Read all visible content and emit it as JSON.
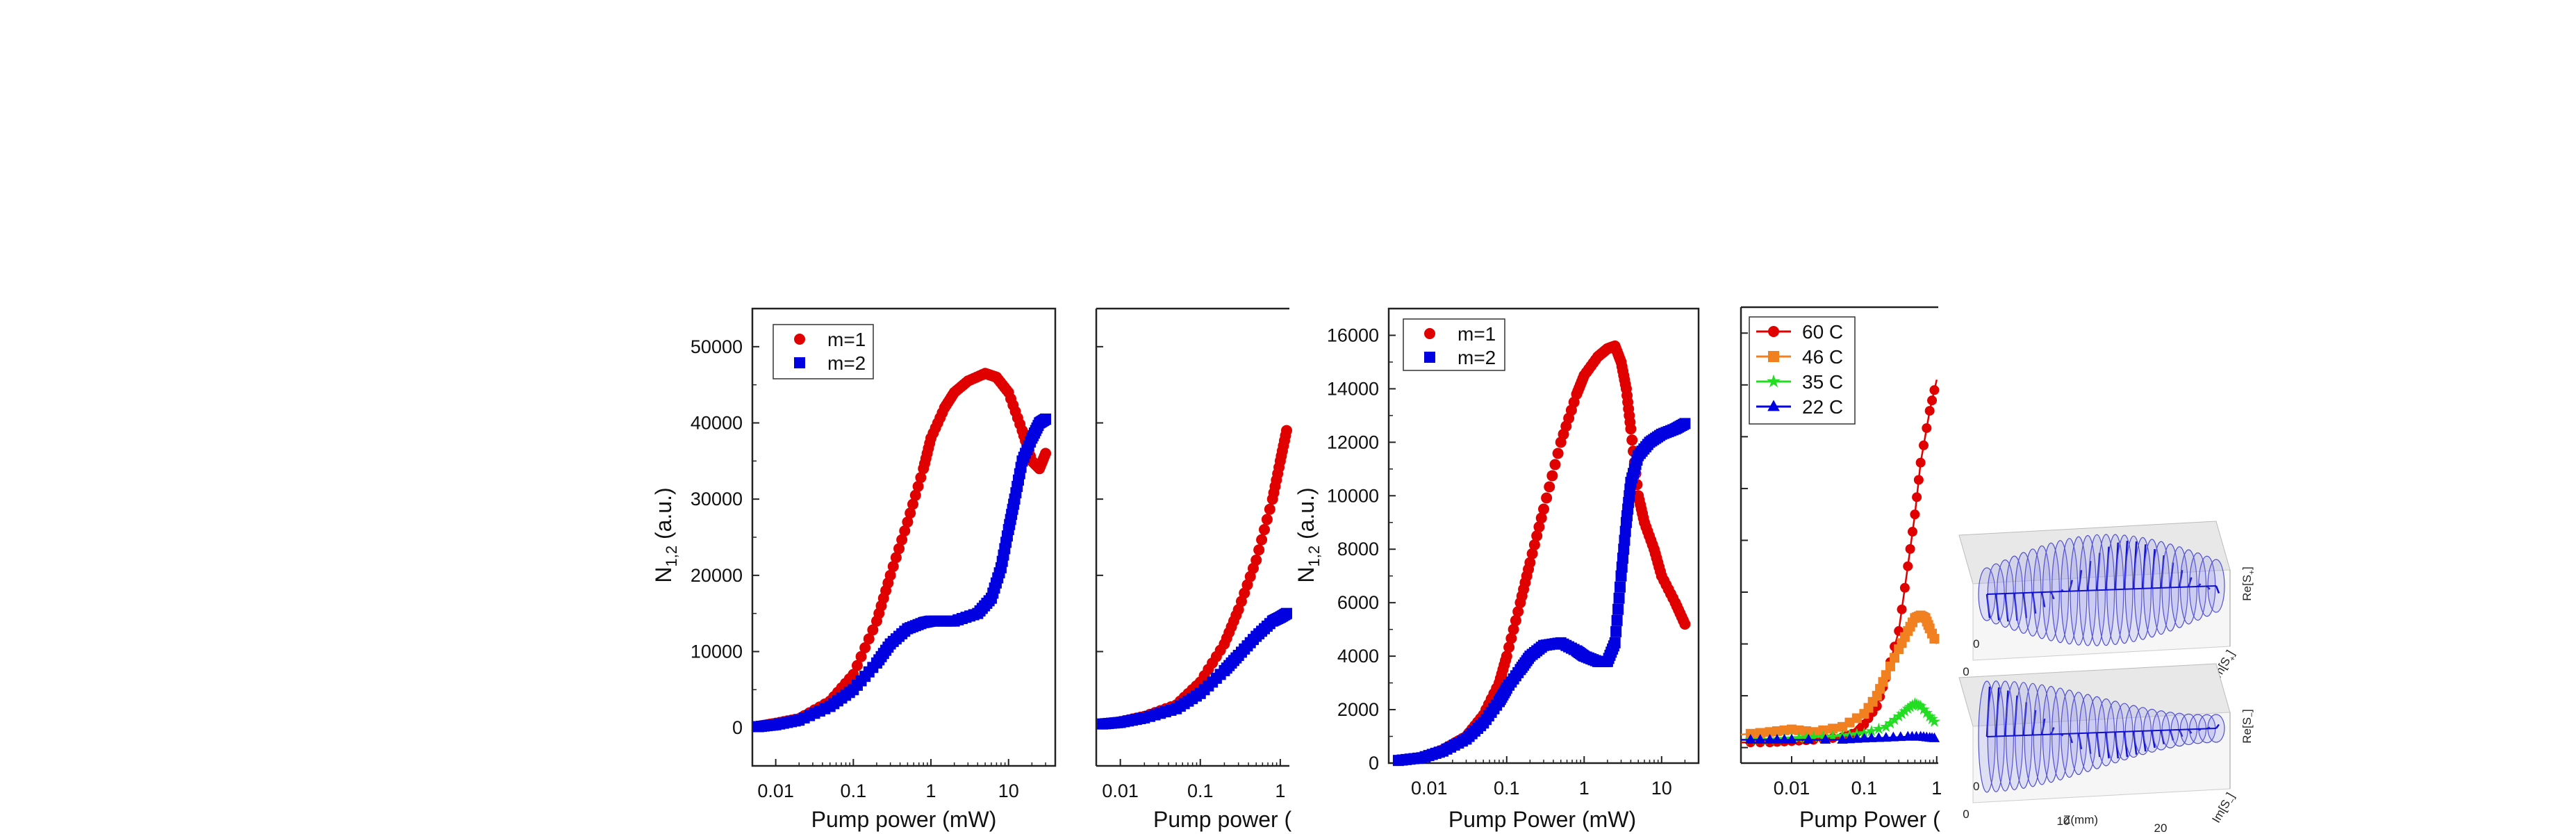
{
  "chart_data": [
    {
      "type": "scatter",
      "xscale": "log",
      "xlim": [
        0.005,
        40
      ],
      "ylim": [
        -5000,
        55000
      ],
      "xticks": [
        "0.01",
        "0.1",
        "1",
        "10"
      ],
      "yticks": [
        "0",
        "10000",
        "20000",
        "30000",
        "40000",
        "50000"
      ],
      "xlabel": "Pump power (mW)",
      "ylabel": "N",
      "ylabel_sub": "1,2",
      "ylabel_unit": " (a.u.)",
      "legend": "top-left",
      "series": [
        {
          "name": "m=1",
          "marker": "circle",
          "color": "#e00000",
          "points": [
            [
              0.006,
              200
            ],
            [
              0.01,
              600
            ],
            [
              0.02,
              1200
            ],
            [
              0.05,
              3500
            ],
            [
              0.1,
              7000
            ],
            [
              0.2,
              14000
            ],
            [
              0.3,
              20000
            ],
            [
              0.5,
              27000
            ],
            [
              0.8,
              34000
            ],
            [
              1,
              38000
            ],
            [
              1.5,
              42000
            ],
            [
              2,
              44000
            ],
            [
              3,
              45500
            ],
            [
              5,
              46500
            ],
            [
              7,
              46000
            ],
            [
              10,
              44000
            ],
            [
              15,
              39000
            ],
            [
              20,
              35000
            ],
            [
              25,
              34000
            ],
            [
              30,
              36000
            ]
          ]
        },
        {
          "name": "m=2",
          "marker": "square",
          "color": "#0000e0",
          "points": [
            [
              0.006,
              150
            ],
            [
              0.01,
              400
            ],
            [
              0.02,
              1000
            ],
            [
              0.05,
              2800
            ],
            [
              0.1,
              5000
            ],
            [
              0.2,
              8500
            ],
            [
              0.3,
              11000
            ],
            [
              0.5,
              13000
            ],
            [
              0.8,
              13800
            ],
            [
              1,
              14000
            ],
            [
              2,
              14000
            ],
            [
              4,
              15000
            ],
            [
              6,
              17000
            ],
            [
              8,
              21000
            ],
            [
              10,
              26000
            ],
            [
              12,
              30000
            ],
            [
              15,
              35000
            ],
            [
              20,
              38000
            ],
            [
              25,
              40000
            ],
            [
              30,
              40500
            ]
          ]
        }
      ]
    },
    {
      "type": "scatter",
      "xscale": "log",
      "xlim": [
        0.005,
        1.3
      ],
      "xticks": [
        "0.01",
        "0.1",
        "1"
      ],
      "xlabel": "Pump power (",
      "series": [
        {
          "name": "",
          "marker": "circle",
          "color": "#e00000",
          "points": [
            [
              0.006,
              500
            ],
            [
              0.01,
              800
            ],
            [
              0.02,
              1500
            ],
            [
              0.05,
              3000
            ],
            [
              0.1,
              6000
            ],
            [
              0.2,
              11000
            ],
            [
              0.3,
              15500
            ],
            [
              0.5,
              22000
            ],
            [
              0.8,
              30000
            ],
            [
              1,
              35000
            ],
            [
              1.2,
              39000
            ]
          ]
        },
        {
          "name": "",
          "marker": "square",
          "color": "#0000e0",
          "points": [
            [
              0.006,
              500
            ],
            [
              0.01,
              700
            ],
            [
              0.02,
              1300
            ],
            [
              0.05,
              2500
            ],
            [
              0.1,
              4500
            ],
            [
              0.2,
              7500
            ],
            [
              0.3,
              9500
            ],
            [
              0.5,
              12000
            ],
            [
              0.8,
              14000
            ],
            [
              1,
              14500
            ],
            [
              1.2,
              15000
            ]
          ]
        }
      ]
    },
    {
      "type": "scatter",
      "xscale": "log",
      "xlim": [
        0.003,
        30
      ],
      "ylim": [
        0,
        17000
      ],
      "xticks": [
        "0.01",
        "0.1",
        "1",
        "10"
      ],
      "yticks": [
        "0",
        "2000",
        "4000",
        "6000",
        "8000",
        "10000",
        "12000",
        "14000",
        "16000"
      ],
      "xlabel": "Pump Power (mW)",
      "ylabel": "N",
      "ylabel_sub": "1,2",
      "ylabel_unit": " (a.u.)",
      "legend": "top-left",
      "series": [
        {
          "name": "m=1",
          "marker": "circle",
          "color": "#e00000",
          "points": [
            [
              0.004,
              100
            ],
            [
              0.008,
              200
            ],
            [
              0.015,
              500
            ],
            [
              0.03,
              1000
            ],
            [
              0.05,
              1800
            ],
            [
              0.08,
              3000
            ],
            [
              0.1,
              4000
            ],
            [
              0.15,
              6000
            ],
            [
              0.2,
              7500
            ],
            [
              0.3,
              9500
            ],
            [
              0.5,
              12000
            ],
            [
              0.8,
              13800
            ],
            [
              1,
              14500
            ],
            [
              1.5,
              15200
            ],
            [
              2,
              15500
            ],
            [
              2.5,
              15600
            ],
            [
              3,
              15000
            ],
            [
              3.5,
              14000
            ],
            [
              4,
              12500
            ],
            [
              5,
              10000
            ],
            [
              6,
              9000
            ],
            [
              8,
              8000
            ],
            [
              10,
              7000
            ],
            [
              15,
              6000
            ],
            [
              20,
              5200
            ]
          ]
        },
        {
          "name": "m=2",
          "marker": "square",
          "color": "#0000e0",
          "points": [
            [
              0.004,
              100
            ],
            [
              0.008,
              200
            ],
            [
              0.015,
              450
            ],
            [
              0.03,
              900
            ],
            [
              0.05,
              1500
            ],
            [
              0.08,
              2300
            ],
            [
              0.1,
              2800
            ],
            [
              0.15,
              3500
            ],
            [
              0.2,
              4000
            ],
            [
              0.3,
              4400
            ],
            [
              0.5,
              4500
            ],
            [
              0.8,
              4200
            ],
            [
              1,
              4000
            ],
            [
              1.5,
              3800
            ],
            [
              2,
              3800
            ],
            [
              2.5,
              4500
            ],
            [
              3,
              7000
            ],
            [
              3.5,
              9000
            ],
            [
              4,
              10500
            ],
            [
              5,
              11500
            ],
            [
              7,
              12000
            ],
            [
              10,
              12300
            ],
            [
              15,
              12500
            ],
            [
              20,
              12700
            ]
          ]
        }
      ]
    },
    {
      "type": "line",
      "xscale": "log",
      "xlim": [
        0.002,
        1.05
      ],
      "xticks": [
        "0.01",
        "0.1",
        "1"
      ],
      "xlabel": "Pump Power (",
      "legend": "top-left",
      "series": [
        {
          "name": "60 C",
          "marker": "circle",
          "color": "#e00000",
          "points": [
            [
              0.002,
              200
            ],
            [
              0.005,
              200
            ],
            [
              0.01,
              250
            ],
            [
              0.02,
              300
            ],
            [
              0.05,
              400
            ],
            [
              0.08,
              600
            ],
            [
              0.1,
              900
            ],
            [
              0.15,
              1600
            ],
            [
              0.2,
              2700
            ],
            [
              0.3,
              4500
            ],
            [
              0.4,
              7000
            ],
            [
              0.5,
              9000
            ],
            [
              0.6,
              11000
            ],
            [
              0.8,
              13000
            ],
            [
              1,
              14200
            ]
          ]
        },
        {
          "name": "46 C",
          "marker": "square",
          "color": "#f08020",
          "points": [
            [
              0.002,
              500
            ],
            [
              0.005,
              600
            ],
            [
              0.01,
              700
            ],
            [
              0.02,
              600
            ],
            [
              0.05,
              800
            ],
            [
              0.1,
              1300
            ],
            [
              0.15,
              2000
            ],
            [
              0.2,
              2800
            ],
            [
              0.3,
              3800
            ],
            [
              0.4,
              4500
            ],
            [
              0.5,
              5000
            ],
            [
              0.6,
              5100
            ],
            [
              0.7,
              5000
            ],
            [
              0.8,
              4600
            ],
            [
              1,
              4000
            ]
          ]
        },
        {
          "name": "35 C",
          "marker": "star",
          "color": "#22dd22",
          "points": [
            [
              0.002,
              300
            ],
            [
              0.005,
              300
            ],
            [
              0.01,
              350
            ],
            [
              0.02,
              400
            ],
            [
              0.05,
              450
            ],
            [
              0.1,
              550
            ],
            [
              0.2,
              800
            ],
            [
              0.3,
              1200
            ],
            [
              0.4,
              1500
            ],
            [
              0.5,
              1700
            ],
            [
              0.6,
              1600
            ],
            [
              0.8,
              1200
            ],
            [
              1,
              900
            ]
          ]
        },
        {
          "name": "22 C",
          "marker": "triangle",
          "color": "#0000e0",
          "points": [
            [
              0.002,
              300
            ],
            [
              0.005,
              300
            ],
            [
              0.01,
              300
            ],
            [
              0.05,
              300
            ],
            [
              0.1,
              350
            ],
            [
              0.2,
              380
            ],
            [
              0.4,
              420
            ],
            [
              0.6,
              420
            ],
            [
              0.8,
              380
            ],
            [
              1,
              350
            ]
          ]
        }
      ]
    }
  ],
  "insets": [
    {
      "axis_ticks_bottom": [
        "0",
        "10",
        "20"
      ],
      "axis_ticks_right": [
        "0"
      ],
      "zlabel": "Z(mm)",
      "right_label_1": "Re[S",
      "right_sub_1": "+",
      "right_label_1_end": "]",
      "right_label_2": "Im[S",
      "right_sub_2": "+",
      "right_label_2_end": "]"
    },
    {
      "axis_ticks_bottom": [
        "0",
        "10",
        "20"
      ],
      "axis_ticks_right": [
        "0"
      ],
      "zlabel": "Z(mm)",
      "right_label_1": "Re[S",
      "right_sub_1": "−",
      "right_label_1_end": "]",
      "right_label_2": "Im[S",
      "right_sub_2": "−",
      "right_label_2_end": "]"
    }
  ],
  "colors": {
    "red": "#e00000",
    "blue": "#0000e0",
    "orange": "#f08020",
    "green": "#22dd22",
    "inset_blue": "#1010d0"
  }
}
